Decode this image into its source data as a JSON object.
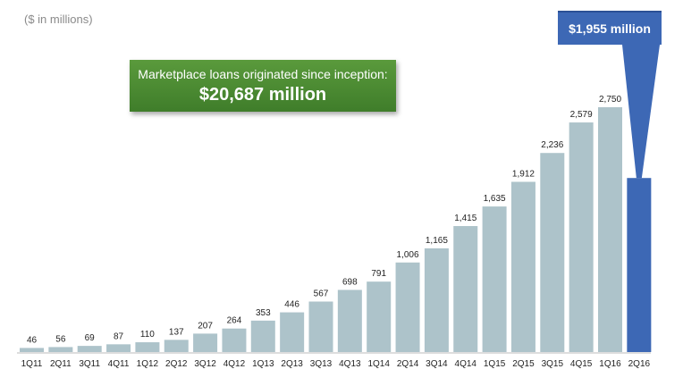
{
  "chart_data": {
    "type": "bar",
    "subtitle": "($ in millions)",
    "categories": [
      "1Q11",
      "2Q11",
      "3Q11",
      "4Q11",
      "1Q12",
      "2Q12",
      "3Q12",
      "4Q12",
      "1Q13",
      "2Q13",
      "3Q13",
      "4Q13",
      "1Q14",
      "2Q14",
      "3Q14",
      "4Q14",
      "1Q15",
      "2Q15",
      "3Q15",
      "4Q15",
      "1Q16",
      "2Q16"
    ],
    "values": [
      46,
      56,
      69,
      87,
      110,
      137,
      207,
      264,
      353,
      446,
      567,
      698,
      791,
      1006,
      1165,
      1415,
      1635,
      1912,
      2236,
      2579,
      2750,
      1955
    ],
    "data_labels": [
      "46",
      "56",
      "69",
      "87",
      "110",
      "137",
      "207",
      "264",
      "353",
      "446",
      "567",
      "698",
      "791",
      "1,006",
      "1,165",
      "1,415",
      "1,635",
      "1,912",
      "2,236",
      "2,579",
      "2,750",
      ""
    ],
    "highlighted_category": "2Q16",
    "highlight_label": "$1,955 million",
    "annotation": {
      "line1": "Marketplace loans originated since inception:",
      "line2": "$20,687 million"
    },
    "colors": {
      "bar": "#adc3ca",
      "highlight_bar": "#3d68b5",
      "callout": "#4f8f34"
    }
  }
}
